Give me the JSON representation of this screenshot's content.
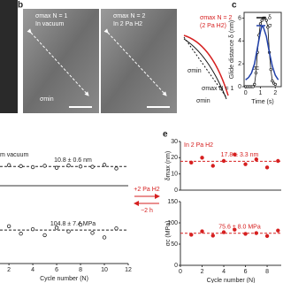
{
  "panel_labels": [
    "b",
    "c",
    "e"
  ],
  "images": [
    {
      "lines": [
        "σmax N = 1",
        "In vacuum"
      ],
      "note": "σmin"
    },
    {
      "lines": [
        "σmax N = 2",
        "In 2 Pa H2"
      ]
    }
  ],
  "schematic": {
    "red": [
      "σmax N = 2",
      "(2 Pa H2)"
    ],
    "black": "σmax N = 1",
    "min1": "σmin",
    "min2": "σmin"
  },
  "partial_label": "m vacuum",
  "arrows": [
    "+2 Pa H2",
    "−2 h"
  ],
  "chart_data": [
    {
      "type": "line",
      "ylabel": "Glide distance δ (nm)",
      "xlabel": "Time (s)",
      "annotation": "σc",
      "xlim": [
        -0.1,
        2.4
      ],
      "xticks": [
        0,
        1,
        2
      ],
      "ylim": [
        0,
        6.5
      ],
      "yticks": [
        0,
        2,
        4,
        6
      ],
      "y2lim": [
        0,
        6.5
      ],
      "series": [
        {
          "name": "δ",
          "color": "#111111",
          "markers": true,
          "x": [
            0,
            0.1,
            0.2,
            0.3,
            0.4,
            0.5,
            0.6,
            0.7,
            0.8,
            0.9,
            1.0,
            1.1,
            1.2,
            1.3,
            1.4,
            1.5,
            1.6,
            1.7,
            1.8,
            1.9,
            2.0
          ],
          "values": [
            0,
            0,
            0,
            0,
            0,
            0,
            0.2,
            1.2,
            3,
            4.5,
            5.5,
            5.8,
            6,
            6,
            5.8,
            5.2,
            3,
            1.5,
            0.5,
            0.3,
            0.2
          ]
        },
        {
          "name": "σ",
          "color": "#1f3fa8",
          "axis": "y2",
          "x": [
            0,
            0.2,
            0.4,
            0.6,
            0.8,
            1.0,
            1.1,
            1.2,
            1.4,
            1.6,
            1.8,
            2.0,
            2.2
          ],
          "values": [
            0.6,
            0.8,
            1.2,
            2,
            3.4,
            4.8,
            5.3,
            5.2,
            4.4,
            3,
            1.8,
            1,
            0.6
          ]
        }
      ]
    },
    {
      "type": "scatter",
      "annotation": "10.8 ± 0.6 nm",
      "ref_line": 10.8,
      "ref_color": "#222222",
      "xlim": [
        1.25,
        12
      ],
      "ylim": [
        5,
        17
      ],
      "series": [
        {
          "color": "#222222",
          "x": [
            1,
            2,
            3,
            4,
            5,
            6,
            7,
            8,
            9,
            10,
            11
          ],
          "values": [
            10.5,
            11.2,
            10.9,
            10.6,
            11,
            10.4,
            11.1,
            10.8,
            10.7,
            11.3,
            10.2
          ]
        }
      ]
    },
    {
      "type": "scatter",
      "annotation": "104.8 ± 7.4 MPa",
      "ref_line": 104.8,
      "ref_color": "#222222",
      "xlabel": "Cycle number (N)",
      "xlim": [
        1.25,
        12
      ],
      "xticks": [
        2,
        4,
        6,
        8,
        10,
        12
      ],
      "ylim": [
        60,
        150
      ],
      "series": [
        {
          "color": "#222222",
          "x": [
            1,
            2,
            3,
            4,
            5,
            6,
            7,
            8,
            9,
            10,
            11
          ],
          "values": [
            104,
            110,
            100,
            106,
            98,
            108,
            103,
            112,
            101,
            95,
            107
          ]
        }
      ]
    },
    {
      "type": "scatter",
      "ylabel": "δmax (nm)",
      "annotation": "17.8 ± 3.3 nm",
      "label": "In 2 Pa H2",
      "ref_line": 17.8,
      "ref_color": "#d62020",
      "xlim": [
        0,
        9.3
      ],
      "ylim": [
        0,
        30
      ],
      "yticks": [
        0,
        10,
        20,
        30
      ],
      "series": [
        {
          "color": "#d62020",
          "x": [
            1,
            2,
            3,
            4,
            5,
            6,
            7,
            8,
            9
          ],
          "values": [
            17,
            20,
            15,
            18,
            22,
            16,
            19,
            14,
            18
          ]
        }
      ]
    },
    {
      "type": "scatter",
      "ylabel": "σc (MPa)",
      "annotation": "75.6 ± 8.0 MPa",
      "ref_line": 75.6,
      "ref_color": "#d62020",
      "xlabel": "Cycle number (N)",
      "xlim": [
        0,
        9.3
      ],
      "xticks": [
        0,
        2,
        4,
        6,
        8
      ],
      "ylim": [
        0,
        150
      ],
      "yticks": [
        0,
        50,
        100,
        150
      ],
      "series": [
        {
          "color": "#d62020",
          "x": [
            1,
            2,
            3,
            4,
            5,
            6,
            7,
            8,
            9
          ],
          "values": [
            72,
            80,
            70,
            78,
            84,
            74,
            76,
            69,
            82
          ]
        }
      ]
    }
  ]
}
